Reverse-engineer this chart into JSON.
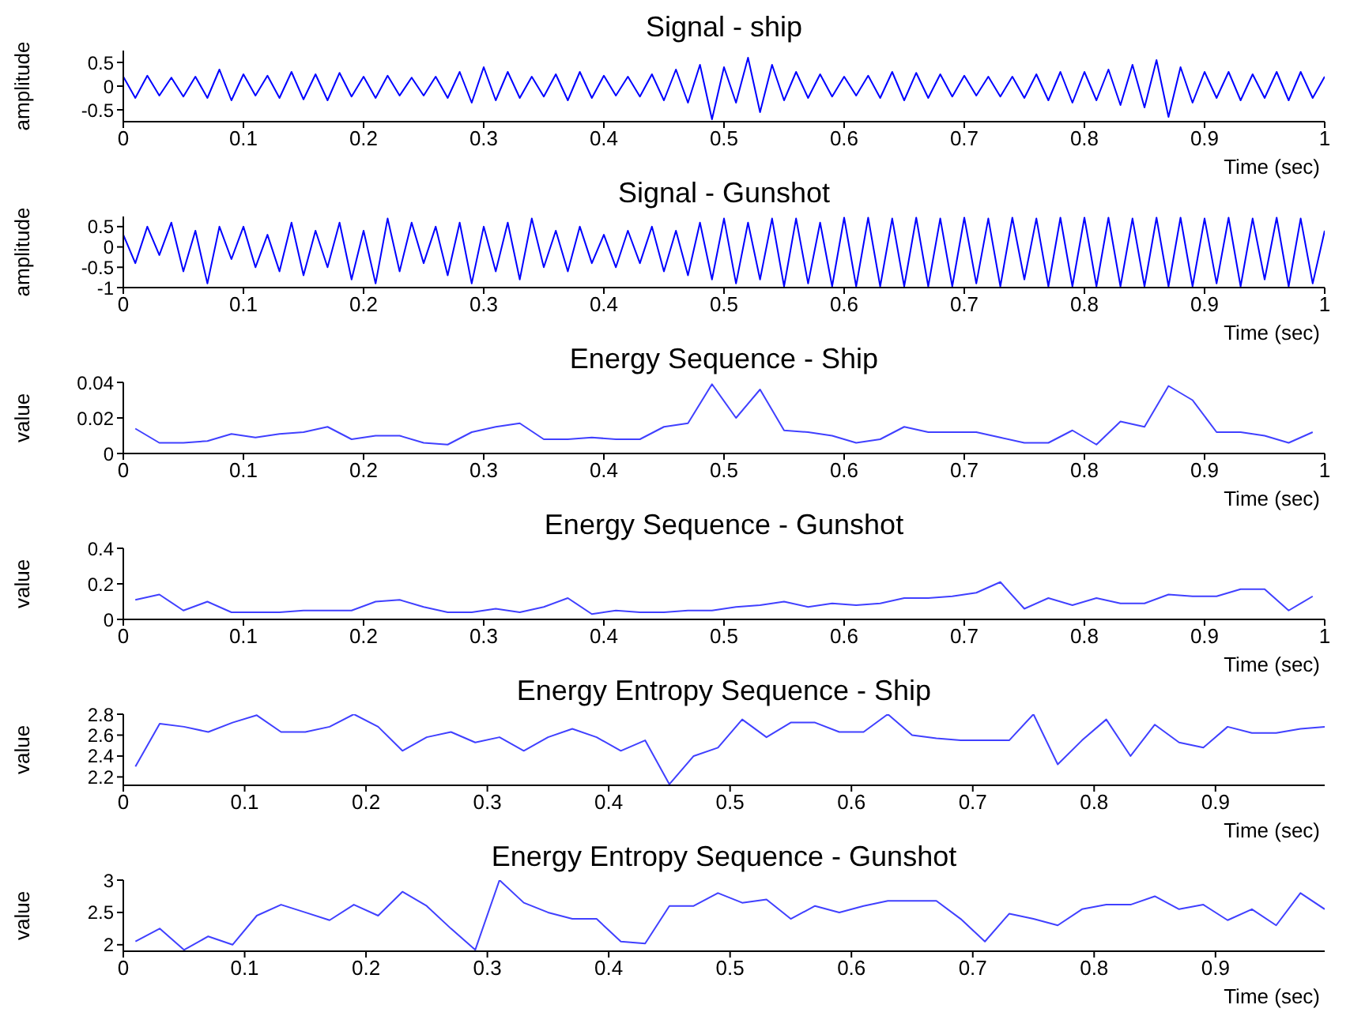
{
  "chart_data": [
    {
      "type": "line",
      "title": "Signal - ship",
      "xlabel": "Time (sec)",
      "ylabel": "amplitude",
      "xlim": [
        0,
        1
      ],
      "xticks": [
        0,
        0.1,
        0.2,
        0.3,
        0.4,
        0.5,
        0.6,
        0.7,
        0.8,
        0.9,
        1
      ],
      "ylim": [
        -0.75,
        0.75
      ],
      "yticks": [
        -0.5,
        0,
        0.5
      ],
      "x": [
        0,
        0.01,
        0.02,
        0.03,
        0.04,
        0.05,
        0.06,
        0.07,
        0.08,
        0.09,
        0.1,
        0.11,
        0.12,
        0.13,
        0.14,
        0.15,
        0.16,
        0.17,
        0.18,
        0.19,
        0.2,
        0.21,
        0.22,
        0.23,
        0.24,
        0.25,
        0.26,
        0.27,
        0.28,
        0.29,
        0.3,
        0.31,
        0.32,
        0.33,
        0.34,
        0.35,
        0.36,
        0.37,
        0.38,
        0.39,
        0.4,
        0.41,
        0.42,
        0.43,
        0.44,
        0.45,
        0.46,
        0.47,
        0.48,
        0.49,
        0.5,
        0.51,
        0.52,
        0.53,
        0.54,
        0.55,
        0.56,
        0.57,
        0.58,
        0.59,
        0.6,
        0.61,
        0.62,
        0.63,
        0.64,
        0.65,
        0.66,
        0.67,
        0.68,
        0.69,
        0.7,
        0.71,
        0.72,
        0.73,
        0.74,
        0.75,
        0.76,
        0.77,
        0.78,
        0.79,
        0.8,
        0.81,
        0.82,
        0.83,
        0.84,
        0.85,
        0.86,
        0.87,
        0.88,
        0.89,
        0.9,
        0.91,
        0.92,
        0.93,
        0.94,
        0.95,
        0.96,
        0.97,
        0.98,
        0.99,
        1
      ],
      "series": [
        {
          "color": "#0000ff",
          "values": [
            0.2,
            -0.25,
            0.22,
            -0.2,
            0.18,
            -0.22,
            0.2,
            -0.25,
            0.35,
            -0.3,
            0.25,
            -0.2,
            0.22,
            -0.25,
            0.3,
            -0.28,
            0.25,
            -0.3,
            0.28,
            -0.22,
            0.2,
            -0.25,
            0.22,
            -0.2,
            0.18,
            -0.2,
            0.2,
            -0.25,
            0.3,
            -0.35,
            0.4,
            -0.3,
            0.3,
            -0.25,
            0.2,
            -0.22,
            0.25,
            -0.3,
            0.3,
            -0.25,
            0.22,
            -0.2,
            0.2,
            -0.22,
            0.25,
            -0.3,
            0.35,
            -0.35,
            0.45,
            -0.7,
            0.4,
            -0.35,
            0.6,
            -0.55,
            0.45,
            -0.3,
            0.3,
            -0.25,
            0.25,
            -0.22,
            0.2,
            -0.2,
            0.22,
            -0.25,
            0.3,
            -0.3,
            0.28,
            -0.25,
            0.25,
            -0.22,
            0.22,
            -0.2,
            0.2,
            -0.22,
            0.2,
            -0.25,
            0.25,
            -0.3,
            0.3,
            -0.35,
            0.3,
            -0.3,
            0.35,
            -0.4,
            0.45,
            -0.45,
            0.55,
            -0.65,
            0.4,
            -0.35,
            0.3,
            -0.25,
            0.3,
            -0.3,
            0.25,
            -0.25,
            0.3,
            -0.3,
            0.3,
            -0.25,
            0.2
          ]
        }
      ]
    },
    {
      "type": "line",
      "title": "Signal - Gunshot",
      "xlabel": "Time (sec)",
      "ylabel": "amplitude",
      "xlim": [
        0,
        1
      ],
      "xticks": [
        0,
        0.1,
        0.2,
        0.3,
        0.4,
        0.5,
        0.6,
        0.7,
        0.8,
        0.9,
        1
      ],
      "ylim": [
        -1,
        0.75
      ],
      "yticks": [
        -1,
        -0.5,
        0,
        0.5
      ],
      "x": [
        0,
        0.01,
        0.02,
        0.03,
        0.04,
        0.05,
        0.06,
        0.07,
        0.08,
        0.09,
        0.1,
        0.11,
        0.12,
        0.13,
        0.14,
        0.15,
        0.16,
        0.17,
        0.18,
        0.19,
        0.2,
        0.21,
        0.22,
        0.23,
        0.24,
        0.25,
        0.26,
        0.27,
        0.28,
        0.29,
        0.3,
        0.31,
        0.32,
        0.33,
        0.34,
        0.35,
        0.36,
        0.37,
        0.38,
        0.39,
        0.4,
        0.41,
        0.42,
        0.43,
        0.44,
        0.45,
        0.46,
        0.47,
        0.48,
        0.49,
        0.5,
        0.51,
        0.52,
        0.53,
        0.54,
        0.55,
        0.56,
        0.57,
        0.58,
        0.59,
        0.6,
        0.61,
        0.62,
        0.63,
        0.64,
        0.65,
        0.66,
        0.67,
        0.68,
        0.69,
        0.7,
        0.71,
        0.72,
        0.73,
        0.74,
        0.75,
        0.76,
        0.77,
        0.78,
        0.79,
        0.8,
        0.81,
        0.82,
        0.83,
        0.84,
        0.85,
        0.86,
        0.87,
        0.88,
        0.89,
        0.9,
        0.91,
        0.92,
        0.93,
        0.94,
        0.95,
        0.96,
        0.97,
        0.98,
        0.99,
        1
      ],
      "series": [
        {
          "color": "#0000ff",
          "values": [
            0.3,
            -0.4,
            0.5,
            -0.2,
            0.6,
            -0.6,
            0.4,
            -0.9,
            0.5,
            -0.3,
            0.5,
            -0.5,
            0.3,
            -0.6,
            0.6,
            -0.7,
            0.4,
            -0.5,
            0.6,
            -0.8,
            0.4,
            -0.9,
            0.7,
            -0.6,
            0.6,
            -0.4,
            0.5,
            -0.7,
            0.6,
            -0.9,
            0.5,
            -0.6,
            0.6,
            -0.8,
            0.7,
            -0.5,
            0.4,
            -0.6,
            0.5,
            -0.4,
            0.3,
            -0.5,
            0.4,
            -0.4,
            0.5,
            -0.6,
            0.4,
            -0.7,
            0.6,
            -0.8,
            0.7,
            -0.9,
            0.6,
            -0.8,
            0.7,
            -0.97,
            0.7,
            -0.9,
            0.6,
            -0.97,
            0.72,
            -0.97,
            0.72,
            -0.97,
            0.7,
            -0.97,
            0.72,
            -0.97,
            0.7,
            -0.97,
            0.72,
            -0.9,
            0.7,
            -0.97,
            0.72,
            -0.8,
            0.7,
            -0.97,
            0.72,
            -0.97,
            0.72,
            -0.97,
            0.72,
            -0.97,
            0.7,
            -0.97,
            0.72,
            -0.97,
            0.72,
            -0.97,
            0.7,
            -0.9,
            0.72,
            -0.97,
            0.7,
            -0.8,
            0.72,
            -0.97,
            0.7,
            -0.9,
            0.4
          ]
        }
      ]
    },
    {
      "type": "line",
      "title": "Energy Sequence - Ship",
      "xlabel": "Time (sec)",
      "ylabel": "value",
      "xlim": [
        0,
        1
      ],
      "xticks": [
        0,
        0.1,
        0.2,
        0.3,
        0.4,
        0.5,
        0.6,
        0.7,
        0.8,
        0.9,
        1
      ],
      "ylim": [
        0,
        0.04
      ],
      "yticks": [
        0,
        0.02,
        0.04
      ],
      "x": [
        0.01,
        0.03,
        0.05,
        0.07,
        0.09,
        0.11,
        0.13,
        0.15,
        0.17,
        0.19,
        0.21,
        0.23,
        0.25,
        0.27,
        0.29,
        0.31,
        0.33,
        0.35,
        0.37,
        0.39,
        0.41,
        0.43,
        0.45,
        0.47,
        0.49,
        0.51,
        0.53,
        0.55,
        0.57,
        0.59,
        0.61,
        0.63,
        0.65,
        0.67,
        0.69,
        0.71,
        0.73,
        0.75,
        0.77,
        0.79,
        0.81,
        0.83,
        0.85,
        0.87,
        0.89,
        0.91,
        0.93,
        0.95,
        0.97,
        0.99
      ],
      "series": [
        {
          "color": "#4040ff",
          "values": [
            0.014,
            0.006,
            0.006,
            0.007,
            0.011,
            0.009,
            0.011,
            0.012,
            0.015,
            0.008,
            0.01,
            0.01,
            0.006,
            0.005,
            0.012,
            0.015,
            0.017,
            0.008,
            0.008,
            0.009,
            0.008,
            0.008,
            0.015,
            0.017,
            0.039,
            0.02,
            0.036,
            0.013,
            0.012,
            0.01,
            0.006,
            0.008,
            0.015,
            0.012,
            0.012,
            0.012,
            0.009,
            0.006,
            0.006,
            0.013,
            0.005,
            0.018,
            0.015,
            0.038,
            0.03,
            0.012,
            0.012,
            0.01,
            0.006,
            0.012
          ]
        }
      ]
    },
    {
      "type": "line",
      "title": "Energy Sequence - Gunshot",
      "xlabel": "Time (sec)",
      "ylabel": "value",
      "xlim": [
        0,
        1
      ],
      "xticks": [
        0,
        0.1,
        0.2,
        0.3,
        0.4,
        0.5,
        0.6,
        0.7,
        0.8,
        0.9,
        1
      ],
      "ylim": [
        0,
        0.4
      ],
      "yticks": [
        0,
        0.2,
        0.4
      ],
      "x": [
        0.01,
        0.03,
        0.05,
        0.07,
        0.09,
        0.11,
        0.13,
        0.15,
        0.17,
        0.19,
        0.21,
        0.23,
        0.25,
        0.27,
        0.29,
        0.31,
        0.33,
        0.35,
        0.37,
        0.39,
        0.41,
        0.43,
        0.45,
        0.47,
        0.49,
        0.51,
        0.53,
        0.55,
        0.57,
        0.59,
        0.61,
        0.63,
        0.65,
        0.67,
        0.69,
        0.71,
        0.73,
        0.75,
        0.77,
        0.79,
        0.81,
        0.83,
        0.85,
        0.87,
        0.89,
        0.91,
        0.93,
        0.95,
        0.97,
        0.99
      ],
      "series": [
        {
          "color": "#4040ff",
          "values": [
            0.11,
            0.14,
            0.05,
            0.1,
            0.04,
            0.04,
            0.04,
            0.05,
            0.05,
            0.05,
            0.1,
            0.11,
            0.07,
            0.04,
            0.04,
            0.06,
            0.04,
            0.07,
            0.12,
            0.03,
            0.05,
            0.04,
            0.04,
            0.05,
            0.05,
            0.07,
            0.08,
            0.1,
            0.07,
            0.09,
            0.08,
            0.09,
            0.12,
            0.12,
            0.13,
            0.15,
            0.21,
            0.06,
            0.12,
            0.08,
            0.12,
            0.09,
            0.09,
            0.14,
            0.13,
            0.13,
            0.17,
            0.17,
            0.05,
            0.13
          ]
        }
      ]
    },
    {
      "type": "line",
      "title": "Energy Entropy Sequence - Ship",
      "xlabel": "Time (sec)",
      "ylabel": "value",
      "xlim": [
        0,
        0.99
      ],
      "xticks": [
        0,
        0.1,
        0.2,
        0.3,
        0.4,
        0.5,
        0.6,
        0.7,
        0.8,
        0.9
      ],
      "ylim": [
        2.12,
        2.8
      ],
      "yticks": [
        2.2,
        2.4,
        2.6,
        2.8
      ],
      "x": [
        0.01,
        0.03,
        0.05,
        0.07,
        0.09,
        0.11,
        0.13,
        0.15,
        0.17,
        0.19,
        0.21,
        0.23,
        0.25,
        0.27,
        0.29,
        0.31,
        0.33,
        0.35,
        0.37,
        0.39,
        0.41,
        0.43,
        0.45,
        0.47,
        0.49,
        0.51,
        0.53,
        0.55,
        0.57,
        0.59,
        0.61,
        0.63,
        0.65,
        0.67,
        0.69,
        0.71,
        0.73,
        0.75,
        0.77,
        0.79,
        0.81,
        0.83,
        0.85,
        0.87,
        0.89,
        0.91,
        0.93,
        0.95,
        0.97,
        0.99
      ],
      "series": [
        {
          "color": "#4040ff",
          "values": [
            2.3,
            2.71,
            2.68,
            2.63,
            2.72,
            2.79,
            2.63,
            2.63,
            2.68,
            2.8,
            2.68,
            2.45,
            2.58,
            2.63,
            2.53,
            2.58,
            2.45,
            2.58,
            2.66,
            2.58,
            2.45,
            2.55,
            2.13,
            2.4,
            2.48,
            2.75,
            2.58,
            2.72,
            2.72,
            2.63,
            2.63,
            2.8,
            2.6,
            2.57,
            2.55,
            2.55,
            2.55,
            2.8,
            2.32,
            2.55,
            2.75,
            2.4,
            2.7,
            2.53,
            2.48,
            2.68,
            2.62,
            2.62,
            2.66,
            2.68
          ]
        }
      ]
    },
    {
      "type": "line",
      "title": "Energy Entropy Sequence - Gunshot",
      "xlabel": "Time (sec)",
      "ylabel": "value",
      "xlim": [
        0,
        0.99
      ],
      "xticks": [
        0,
        0.1,
        0.2,
        0.3,
        0.4,
        0.5,
        0.6,
        0.7,
        0.8,
        0.9
      ],
      "ylim": [
        1.9,
        3
      ],
      "yticks": [
        2,
        2.5,
        3
      ],
      "x": [
        0.01,
        0.03,
        0.05,
        0.07,
        0.09,
        0.11,
        0.13,
        0.15,
        0.17,
        0.19,
        0.21,
        0.23,
        0.25,
        0.27,
        0.29,
        0.31,
        0.33,
        0.35,
        0.37,
        0.39,
        0.41,
        0.43,
        0.45,
        0.47,
        0.49,
        0.51,
        0.53,
        0.55,
        0.57,
        0.59,
        0.61,
        0.63,
        0.65,
        0.67,
        0.69,
        0.71,
        0.73,
        0.75,
        0.77,
        0.79,
        0.81,
        0.83,
        0.85,
        0.87,
        0.89,
        0.91,
        0.93,
        0.95,
        0.97,
        0.99
      ],
      "series": [
        {
          "color": "#4040ff",
          "values": [
            2.05,
            2.25,
            1.92,
            2.13,
            2.0,
            2.45,
            2.62,
            2.5,
            2.38,
            2.62,
            2.45,
            2.82,
            2.6,
            2.25,
            1.92,
            3.0,
            2.65,
            2.5,
            2.4,
            2.4,
            2.05,
            2.02,
            2.6,
            2.6,
            2.8,
            2.65,
            2.7,
            2.4,
            2.6,
            2.5,
            2.6,
            2.68,
            2.68,
            2.68,
            2.4,
            2.05,
            2.48,
            2.4,
            2.3,
            2.55,
            2.62,
            2.62,
            2.75,
            2.55,
            2.62,
            2.38,
            2.55,
            2.3,
            2.8,
            2.55
          ]
        }
      ]
    }
  ]
}
